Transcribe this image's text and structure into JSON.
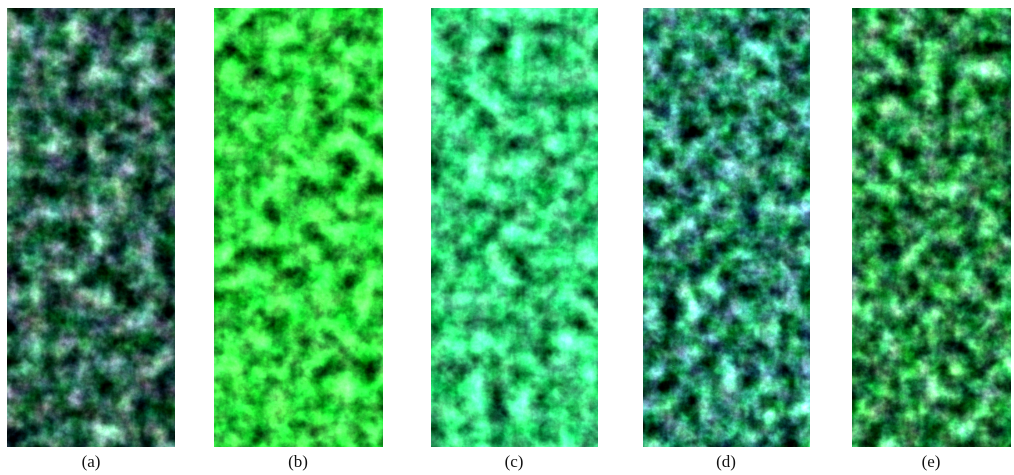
{
  "panels": [
    {
      "label": "(a)"
    },
    {
      "label": "(b)"
    },
    {
      "label": "(c)"
    },
    {
      "label": "(d)"
    },
    {
      "label": "(e)"
    }
  ]
}
